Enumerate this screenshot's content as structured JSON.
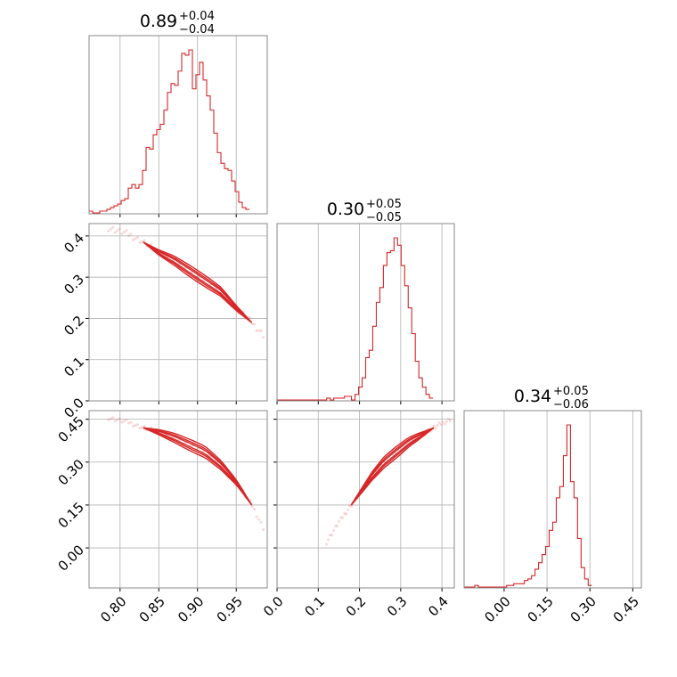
{
  "colors": {
    "accent": "#d62728",
    "grid": "#b0b0b0",
    "frame": "#888888"
  },
  "chart_data": {
    "type": "corner",
    "parameters": [
      {
        "range": [
          0.76,
          0.99
        ],
        "ticks": [
          0.8,
          0.85,
          0.9,
          0.95
        ],
        "tick_labels": [
          "0.80",
          "0.85",
          "0.90",
          "0.95"
        ],
        "title": {
          "value": "0.89",
          "plus": "+0.04",
          "minus": "−0.04"
        }
      },
      {
        "range": [
          0.0,
          0.43
        ],
        "ticks": [
          0.0,
          0.1,
          0.2,
          0.3,
          0.4
        ],
        "tick_labels": [
          "0.0",
          "0.1",
          "0.2",
          "0.3",
          "0.4"
        ],
        "title": {
          "value": "0.30",
          "plus": "+0.05",
          "minus": "−0.05"
        }
      },
      {
        "range": [
          -0.14,
          0.48
        ],
        "ticks": [
          0.0,
          0.15,
          0.3,
          0.45
        ],
        "tick_labels": [
          "0.00",
          "0.15",
          "0.30",
          "0.45"
        ],
        "title": {
          "value": "0.34",
          "plus": "+0.05",
          "minus": "−0.06"
        }
      }
    ],
    "histograms": [
      {
        "x_start": 0.76,
        "bin_width": 0.0046,
        "counts": [
          1,
          0,
          0,
          1,
          1,
          2,
          3,
          4,
          5,
          7,
          8,
          14,
          16,
          14,
          16,
          24,
          37,
          36,
          44,
          47,
          50,
          58,
          68,
          73,
          72,
          80,
          90,
          89,
          92,
          70,
          78,
          85,
          75,
          66,
          58,
          45,
          34,
          28,
          25,
          24,
          18,
          12,
          6,
          3,
          2
        ]
      },
      {
        "x_start": 0.0,
        "bin_width": 0.0086,
        "counts": [
          0,
          0,
          0,
          0,
          0,
          0,
          0,
          0,
          0,
          0,
          0,
          0,
          0,
          0,
          1,
          0,
          1,
          1,
          1,
          2,
          2,
          0,
          3,
          7,
          12,
          23,
          27,
          40,
          53,
          61,
          73,
          80,
          81,
          88,
          84,
          73,
          62,
          50,
          36,
          21,
          12,
          7,
          3,
          1
        ]
      },
      {
        "x_start": -0.14,
        "bin_width": 0.0124,
        "counts": [
          0,
          0,
          0,
          1,
          0,
          0,
          0,
          0,
          0,
          0,
          0,
          0,
          1,
          1,
          2,
          2,
          2,
          4,
          5,
          7,
          11,
          15,
          20,
          25,
          35,
          40,
          55,
          62,
          81,
          100,
          65,
          55,
          30,
          12,
          5,
          1
        ]
      }
    ],
    "pair_relations": [
      {
        "x_param": 0,
        "y_param": 1,
        "x": [
          0.785,
          0.81,
          0.83,
          0.85,
          0.87,
          0.89,
          0.91,
          0.93,
          0.95,
          0.97,
          0.985
        ],
        "y": [
          0.42,
          0.405,
          0.385,
          0.36,
          0.34,
          0.315,
          0.29,
          0.265,
          0.225,
          0.19,
          0.16
        ]
      },
      {
        "x_param": 0,
        "y_param": 2,
        "x": [
          0.785,
          0.81,
          0.83,
          0.85,
          0.87,
          0.89,
          0.91,
          0.93,
          0.95,
          0.97,
          0.985
        ],
        "y": [
          0.455,
          0.44,
          0.42,
          0.405,
          0.385,
          0.36,
          0.335,
          0.29,
          0.23,
          0.15,
          0.07
        ]
      },
      {
        "x_param": 1,
        "y_param": 2,
        "x": [
          0.12,
          0.15,
          0.18,
          0.2,
          0.23,
          0.26,
          0.29,
          0.32,
          0.35,
          0.38,
          0.42
        ],
        "y": [
          0.02,
          0.09,
          0.15,
          0.19,
          0.25,
          0.3,
          0.335,
          0.37,
          0.395,
          0.42,
          0.45
        ]
      }
    ]
  }
}
